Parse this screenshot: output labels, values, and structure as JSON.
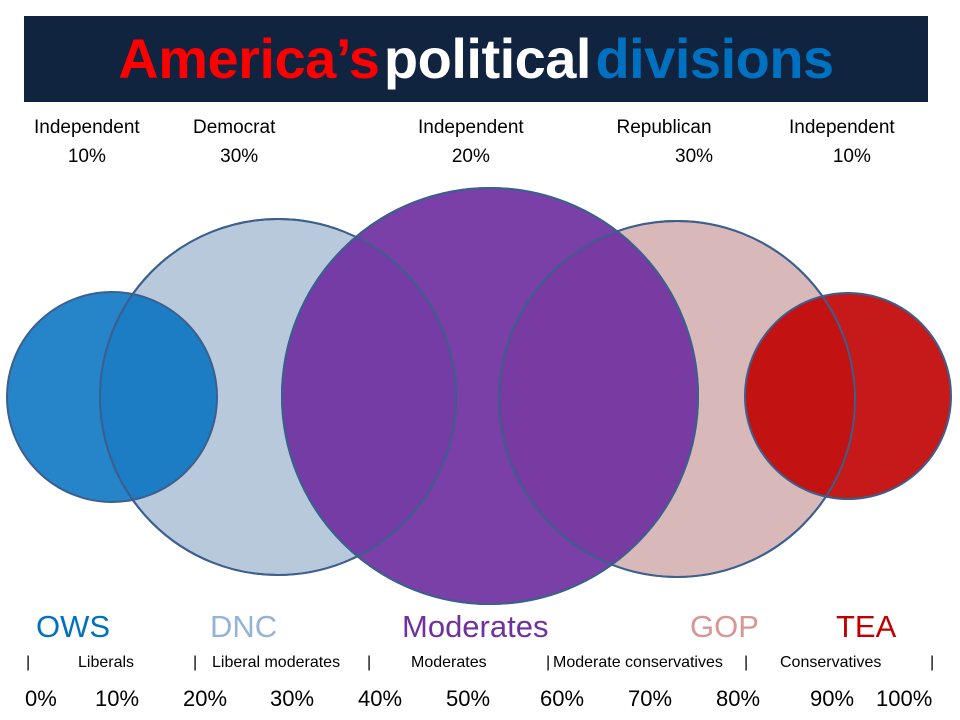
{
  "title": {
    "part1": "America’s",
    "part2": "political",
    "part3": "divisions"
  },
  "affiliations": [
    {
      "label": "Independent",
      "share": "10%"
    },
    {
      "label": "Democrat",
      "share": "30%"
    },
    {
      "label": "Independent",
      "share": "20%"
    },
    {
      "label": "Republican",
      "share": "30%"
    },
    {
      "label": "Independent",
      "share": "10%"
    }
  ],
  "groups": [
    {
      "label": "OWS",
      "color": "#0070c0"
    },
    {
      "label": "DNC",
      "color": "#95b3d7"
    },
    {
      "label": "Moderates",
      "color": "#7030a0"
    },
    {
      "label": "GOP",
      "color": "#d99694"
    },
    {
      "label": "TEA",
      "color": "#c00000"
    }
  ],
  "segments": [
    "Liberals",
    "Liberal moderates",
    "Moderates",
    "Moderate conservatives",
    "Conservatives"
  ],
  "separator": "|",
  "scale": [
    "0%",
    "10%",
    "20%",
    "30%",
    "40%",
    "50%",
    "60%",
    "70%",
    "80%",
    "90%",
    "100%"
  ]
}
